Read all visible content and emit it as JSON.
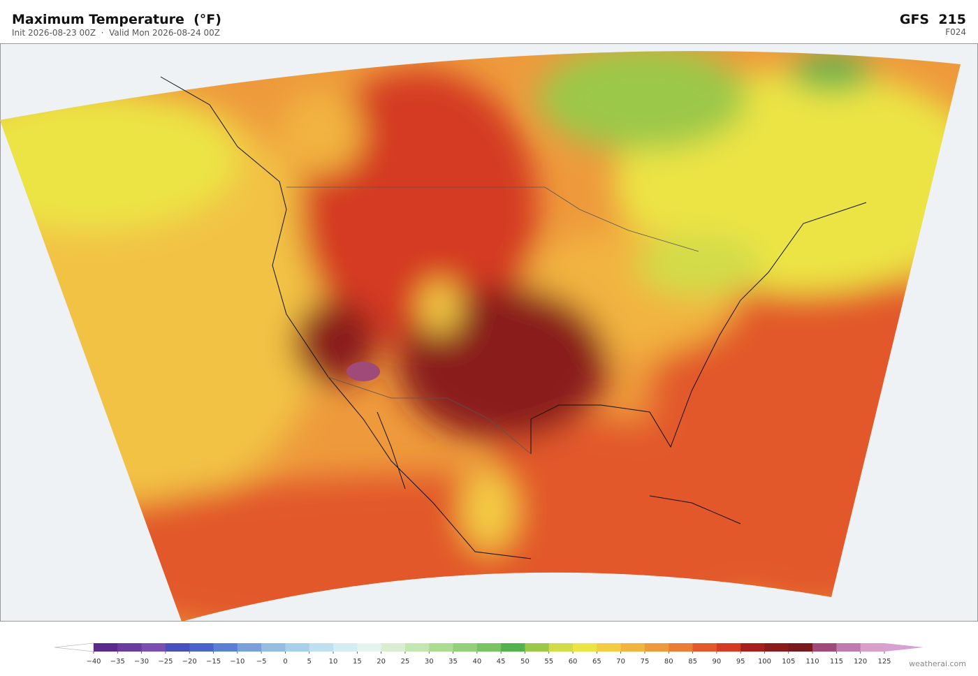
{
  "header": {
    "title": "Maximum Temperature  (°F)",
    "subtitle": "Init 2026-08-23 00Z  ·  Valid Mon 2026-08-24 00Z",
    "model": "GFS  215",
    "forecast_hour": "F024"
  },
  "colorbar": {
    "ticks": [
      {
        "value": -40,
        "label": "−40"
      },
      {
        "value": -35,
        "label": "−35"
      },
      {
        "value": -30,
        "label": "−30"
      },
      {
        "value": -25,
        "label": "−25"
      },
      {
        "value": -20,
        "label": "−20"
      },
      {
        "value": -15,
        "label": "−15"
      },
      {
        "value": -10,
        "label": "−10"
      },
      {
        "value": -5,
        "label": "−5"
      },
      0,
      5,
      10,
      15,
      20,
      25,
      30,
      35,
      40,
      45,
      50,
      55,
      60,
      65,
      70,
      75,
      80,
      85,
      90,
      95,
      100,
      105,
      110,
      115,
      120,
      125
    ],
    "colors": [
      "#5b2a8c",
      "#6a3ca0",
      "#7a4fb0",
      "#4a4fc0",
      "#4a63cc",
      "#5a80d4",
      "#7aa0dc",
      "#94bde4",
      "#a8d0ea",
      "#bfe0ef",
      "#d4ecf2",
      "#e4f3f0",
      "#d8eed0",
      "#c4e6b0",
      "#acdc90",
      "#94d07a",
      "#78c464",
      "#54b24e",
      "#9cc84a",
      "#d2dc48",
      "#ece444",
      "#f4cc44",
      "#f2b440",
      "#ee9a3c",
      "#ea7c34",
      "#e2582a",
      "#d43a24",
      "#a81e1e",
      "#8a1a1c",
      "#7a1820",
      "#a04a7a",
      "#c07ab0",
      "#d8a0c8"
    ],
    "under_color": "#ffffff",
    "over_color": "#d8a0d0"
  },
  "footer": {
    "watermark": "weatherai.com"
  }
}
